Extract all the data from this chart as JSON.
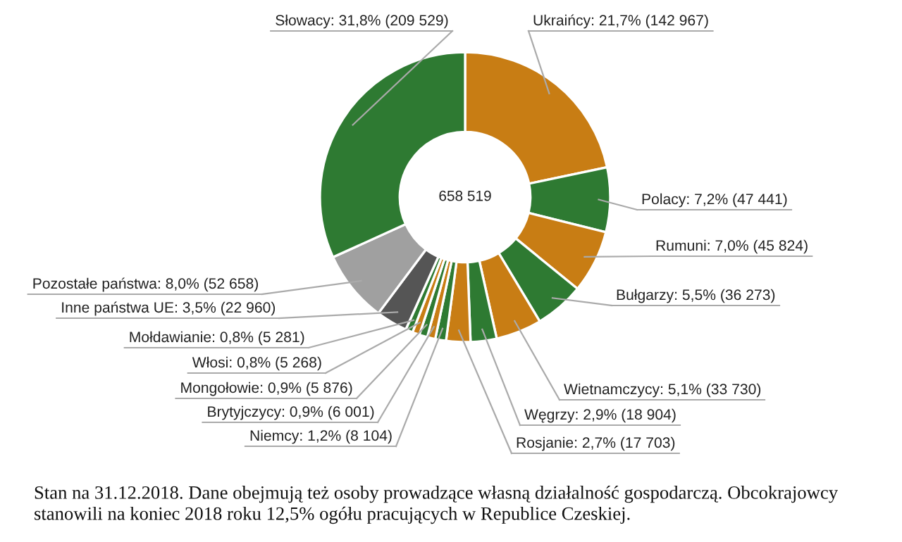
{
  "chart_data": {
    "type": "donut",
    "categories": [
      "Ukraińcy",
      "Polacy",
      "Rumuni",
      "Bułgarzy",
      "Wietnamczycy",
      "Węgrzy",
      "Rosjanie",
      "Niemcy",
      "Brytyjczycy",
      "Mongołowie",
      "Włosi",
      "Mołdawianie",
      "Inne państwa UE",
      "Pozostałe państwa",
      "Słowacy"
    ],
    "values": [
      21.7,
      7.2,
      7.0,
      5.5,
      5.1,
      2.9,
      2.7,
      1.2,
      0.9,
      0.9,
      0.8,
      0.8,
      3.5,
      8.0,
      31.8
    ],
    "value_labels": [
      "21,7% (142 967)",
      "7,2% (47 441)",
      "7,0% (45 824)",
      "5,5% (36 273)",
      "5,1% (33 730)",
      "2,9% (18 904)",
      "2,7% (17 703)",
      "1,2% (8 104)",
      "0,9% (6 001)",
      "0,9% (5 876)",
      "0,8% (5 268)",
      "0,8% (5 281)",
      "3,5% (22 960)",
      "8,0% (52 658)",
      "31,8% (209 529)"
    ],
    "colors": [
      "#c87d14",
      "#2e7a32",
      "#c87d14",
      "#2e7a32",
      "#c87d14",
      "#2e7a32",
      "#c87d14",
      "#2e7a32",
      "#c87d14",
      "#2e7a32",
      "#c87d14",
      "#2e7a32",
      "#555555",
      "#a0a0a0",
      "#2e7a32"
    ],
    "annotations": [
      "658 519",
      "Stan na 31.12.2018. Dane obejmują też osoby prowadzące własną działalność gospodarczą. Obcokrajowcy stanowili na koniec 2018 roku 12,5% ogółu pracujących w Republice Czeskiej."
    ],
    "legend": false
  }
}
